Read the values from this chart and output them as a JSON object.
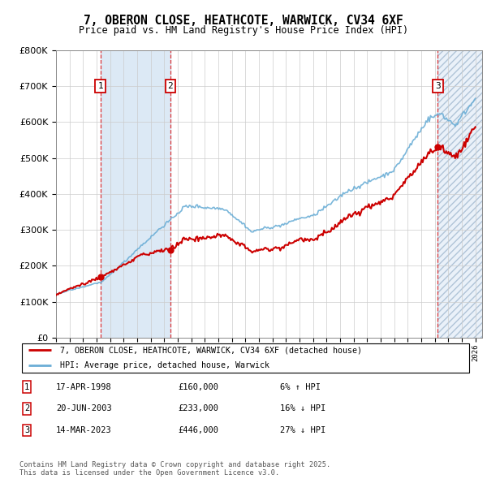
{
  "title": "7, OBERON CLOSE, HEATHCOTE, WARWICK, CV34 6XF",
  "subtitle": "Price paid vs. HM Land Registry's House Price Index (HPI)",
  "ylim": [
    0,
    800000
  ],
  "xlim_start": 1995.0,
  "xlim_end": 2026.5,
  "legend_line1": "7, OBERON CLOSE, HEATHCOTE, WARWICK, CV34 6XF (detached house)",
  "legend_line2": "HPI: Average price, detached house, Warwick",
  "transactions": [
    {
      "num": 1,
      "date": "17-APR-1998",
      "price": 160000,
      "pct": "6%",
      "dir": "↑",
      "x": 1998.29
    },
    {
      "num": 2,
      "date": "20-JUN-2003",
      "price": 233000,
      "pct": "16%",
      "dir": "↓",
      "x": 2003.46
    },
    {
      "num": 3,
      "date": "14-MAR-2023",
      "price": 446000,
      "pct": "27%",
      "dir": "↓",
      "x": 2023.21
    }
  ],
  "footer": "Contains HM Land Registry data © Crown copyright and database right 2025.\nThis data is licensed under the Open Government Licence v3.0.",
  "hpi_color": "#6baed6",
  "price_color": "#cc0000",
  "band_color": "#dce9f5"
}
